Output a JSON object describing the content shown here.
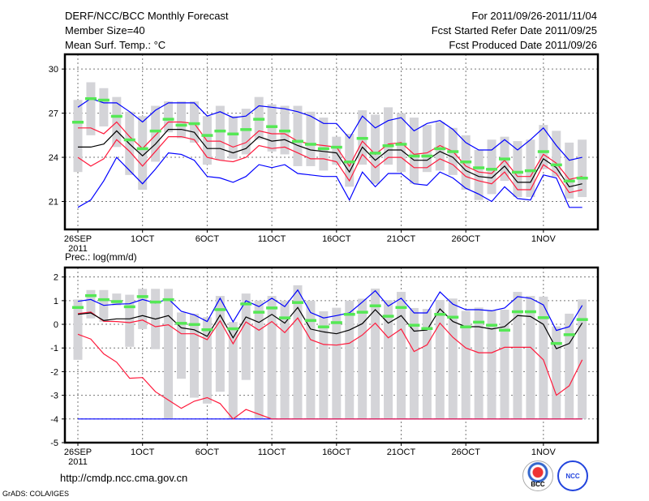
{
  "header": {
    "title": "DERF/NCC/BCC Monthly Forecast",
    "member_size": "Member Size=40",
    "variable": "Mean Surf. Temp.: °C",
    "period": "For 2011/09/26-2011/11/04",
    "start_date": "Fcst Started Refer Date 2011/09/25",
    "produced_date": "Fcst Produced Date 2011/09/26"
  },
  "footer": {
    "url": "http://cmdp.ncc.cma.gov.cn",
    "credit": "GrADS: COLA/IGES",
    "logo_bcc": "BCC",
    "logo_ncc": "NCC"
  },
  "colors": {
    "mean": "#000000",
    "red": "#ff1a3c",
    "blue": "#0000ff",
    "green": "#55e855",
    "bar": "#d4d4d8"
  },
  "chart_data": [
    {
      "type": "line",
      "title": "Mean Surf. Temp.: °C",
      "xlabel_year": "2011",
      "x_ticks": [
        {
          "day": 0,
          "label": "26SEP"
        },
        {
          "day": 5,
          "label": "1OCT"
        },
        {
          "day": 10,
          "label": "6OCT"
        },
        {
          "day": 15,
          "label": "11OCT"
        },
        {
          "day": 20,
          "label": "16OCT"
        },
        {
          "day": 25,
          "label": "21OCT"
        },
        {
          "day": 30,
          "label": "26OCT"
        },
        {
          "day": 36,
          "label": "1NOV"
        }
      ],
      "y_ticks": [
        21,
        24,
        27,
        30
      ],
      "ylim": [
        19.1,
        31.0
      ],
      "grid": true,
      "series": {
        "range_high": [
          27.9,
          29.1,
          28.7,
          28.1,
          27.1,
          26.8,
          27.5,
          27.8,
          27.8,
          27.8,
          26.8,
          27.5,
          26.8,
          27.3,
          28.1,
          27.6,
          27.5,
          27.5,
          27.1,
          26.7,
          25.4,
          25.6,
          27.2,
          26.9,
          27.4,
          27.0,
          26.7,
          26.2,
          26.4,
          26.0,
          25.5,
          24.5,
          25.2,
          25.4,
          25.1,
          25.2,
          26.2,
          25.8,
          25.0,
          25.2
        ],
        "range_low": [
          23.0,
          25.5,
          26.1,
          24.7,
          22.8,
          21.8,
          23.7,
          25.7,
          25.3,
          25.0,
          23.5,
          23.8,
          23.9,
          24.2,
          25.2,
          24.4,
          24.2,
          23.4,
          23.4,
          23.1,
          23.5,
          22.0,
          23.5,
          22.2,
          23.5,
          23.0,
          22.2,
          23.0,
          23.1,
          22.8,
          21.8,
          21.1,
          21.5,
          22.4,
          21.3,
          21.3,
          23.2,
          22.7,
          21.2,
          21.3
        ],
        "blue_upper": [
          27.4,
          28.0,
          27.7,
          27.7,
          27.1,
          26.4,
          27.2,
          27.7,
          27.7,
          27.7,
          26.8,
          27.1,
          26.7,
          26.8,
          27.5,
          27.4,
          27.3,
          27.1,
          26.8,
          26.3,
          26.3,
          25.3,
          26.8,
          26.0,
          26.5,
          26.7,
          25.8,
          26.3,
          26.5,
          25.9,
          25.0,
          24.5,
          24.5,
          25.2,
          24.5,
          25.2,
          26.0,
          24.8,
          23.8,
          24.0
        ],
        "red_upper": [
          26.0,
          26.0,
          25.6,
          26.4,
          25.4,
          24.6,
          25.5,
          26.4,
          26.4,
          26.3,
          25.1,
          25.1,
          24.7,
          25.0,
          25.8,
          25.6,
          25.6,
          25.1,
          24.9,
          24.8,
          24.7,
          23.4,
          25.1,
          24.2,
          24.9,
          25.0,
          24.2,
          24.3,
          24.8,
          24.4,
          23.4,
          23.0,
          22.9,
          23.8,
          22.7,
          22.7,
          24.2,
          23.6,
          22.5,
          22.7
        ],
        "mean": [
          24.7,
          24.7,
          24.9,
          25.8,
          24.9,
          24.1,
          24.9,
          25.9,
          25.9,
          25.7,
          24.6,
          24.6,
          24.3,
          24.6,
          25.4,
          25.1,
          25.2,
          24.8,
          24.5,
          24.4,
          24.3,
          23.0,
          24.7,
          23.8,
          24.5,
          24.5,
          23.8,
          23.8,
          24.4,
          24.0,
          23.1,
          22.7,
          22.6,
          23.4,
          22.3,
          22.3,
          23.9,
          23.3,
          22.0,
          22.2
        ],
        "red_lower": [
          24.0,
          23.4,
          23.9,
          25.2,
          24.4,
          23.4,
          24.4,
          25.4,
          25.4,
          25.2,
          24.0,
          23.8,
          23.7,
          24.0,
          24.8,
          24.6,
          24.7,
          24.3,
          23.9,
          23.9,
          23.7,
          22.4,
          24.2,
          23.3,
          24.0,
          24.0,
          23.3,
          23.3,
          23.9,
          23.5,
          22.7,
          22.4,
          22.2,
          23.0,
          21.8,
          21.8,
          23.5,
          22.9,
          21.6,
          21.8
        ],
        "blue_lower": [
          20.6,
          21.1,
          22.4,
          24.0,
          23.1,
          22.2,
          23.2,
          24.3,
          24.2,
          23.8,
          22.7,
          22.6,
          22.3,
          22.7,
          23.5,
          23.3,
          23.5,
          22.9,
          22.8,
          22.7,
          22.7,
          21.1,
          23.0,
          22.0,
          22.9,
          22.9,
          22.2,
          22.1,
          23.0,
          22.6,
          21.9,
          21.5,
          21.0,
          22.0,
          21.2,
          21.1,
          22.8,
          22.6,
          20.6,
          20.6
        ],
        "green_marker": [
          26.4,
          28.0,
          27.9,
          26.8,
          25.2,
          24.6,
          25.8,
          26.6,
          26.2,
          26.3,
          25.5,
          25.8,
          25.6,
          25.9,
          26.6,
          26.1,
          25.8,
          25.1,
          24.9,
          24.6,
          24.7,
          23.7,
          25.3,
          24.3,
          24.8,
          24.9,
          24.1,
          24.1,
          24.6,
          24.4,
          23.7,
          23.3,
          23.2,
          23.9,
          23.0,
          23.1,
          24.4,
          23.5,
          22.4,
          22.6
        ]
      }
    },
    {
      "type": "line",
      "title": "Prec.: log(mm/d)",
      "xlabel_year": "2011",
      "x_ticks": [
        {
          "day": 0,
          "label": "26SEP"
        },
        {
          "day": 5,
          "label": "1OCT"
        },
        {
          "day": 10,
          "label": "6OCT"
        },
        {
          "day": 15,
          "label": "11OCT"
        },
        {
          "day": 20,
          "label": "16OCT"
        },
        {
          "day": 25,
          "label": "21OCT"
        },
        {
          "day": 30,
          "label": "26OCT"
        },
        {
          "day": 36,
          "label": "1NOV"
        }
      ],
      "y_ticks": [
        -5,
        -4,
        -3,
        -2,
        -1,
        0,
        1,
        2
      ],
      "ylim": [
        -5,
        2.4
      ],
      "grid": true,
      "series": {
        "range_high": [
          1.05,
          1.45,
          1.45,
          1.3,
          1.25,
          1.5,
          1.5,
          1.5,
          0.5,
          0.45,
          0.3,
          1.2,
          0.1,
          1.3,
          1.0,
          1.2,
          1.0,
          1.65,
          1.0,
          0.55,
          0.7,
          1.0,
          1.08,
          1.51,
          1.02,
          1.37,
          0.69,
          0.65,
          1.03,
          1.09,
          0.57,
          0.71,
          0.6,
          0.62,
          1.37,
          1.2,
          1.17,
          -0.09,
          0.45,
          1.05
        ],
        "range_low": [
          -1.5,
          0.25,
          0.1,
          0.8,
          -0.95,
          -0.2,
          -1.05,
          -4,
          -2.3,
          -3.1,
          -3.35,
          -2.85,
          -4,
          -2.35,
          -4,
          -4,
          -4,
          -4,
          -4,
          -4,
          -4,
          -4,
          -4,
          -4,
          -4,
          -4,
          -4,
          -4,
          -4,
          -4,
          -4,
          -4,
          -4,
          -4,
          -4,
          -4,
          -4,
          -4,
          -4,
          -4
        ],
        "blue_upper": [
          0.97,
          1.05,
          0.8,
          0.85,
          0.87,
          1.05,
          0.9,
          1.07,
          0.55,
          0.4,
          0.12,
          1.1,
          0.1,
          1.0,
          0.75,
          1.1,
          0.75,
          1.45,
          0.5,
          0.27,
          0.37,
          0.48,
          0.94,
          1.42,
          0.77,
          1.1,
          0.48,
          0.48,
          1.37,
          0.85,
          0.62,
          0.62,
          0.57,
          0.69,
          1.17,
          1.1,
          0.82,
          -0.26,
          -0.1,
          0.8
        ],
        "mean": [
          0.42,
          0.48,
          0.16,
          0.23,
          0.23,
          0.37,
          0.22,
          0.37,
          -0.15,
          -0.23,
          -0.51,
          0.39,
          -0.57,
          0.31,
          0.08,
          0.42,
          0.05,
          0.71,
          -0.2,
          -0.32,
          -0.4,
          -0.24,
          0.03,
          0.62,
          0.05,
          0.37,
          -0.29,
          -0.24,
          0.65,
          0.12,
          -0.1,
          -0.1,
          -0.2,
          -0.1,
          0.37,
          0.33,
          0.0,
          -1.03,
          -0.81,
          0.06
        ],
        "red_upper": [
          0.45,
          0.52,
          0.13,
          0.12,
          0.07,
          0.18,
          -0.1,
          -0.02,
          -0.4,
          -0.4,
          -0.65,
          0.15,
          -0.82,
          0.1,
          -0.25,
          0.12,
          -0.35,
          0.27,
          -0.65,
          -0.85,
          -0.88,
          -0.8,
          -0.45,
          0.05,
          -0.57,
          -0.2,
          -1.15,
          -0.87,
          0.05,
          -0.55,
          -1.0,
          -1.2,
          -1.2,
          -0.97,
          -0.97,
          -0.97,
          -1.5,
          -3.0,
          -2.6,
          -1.5
        ],
        "red_lower": [
          -0.42,
          -0.62,
          -1.25,
          -1.6,
          -2.28,
          -2.25,
          -2.85,
          -3.2,
          -3.55,
          -3.25,
          -3.1,
          -3.35,
          -4,
          -3.6,
          -3.8,
          -4,
          -4,
          -4,
          -4,
          -4,
          -4,
          -4,
          -4,
          -4,
          -4,
          -4,
          -4,
          -4,
          -4,
          -4,
          -4,
          -4,
          -4,
          -4,
          -4,
          -4,
          -4,
          -4,
          -4,
          -4
        ],
        "blue_lower": [
          -4,
          -4,
          -4,
          -4,
          -4,
          -4,
          -4,
          -4,
          -4,
          -4,
          -4,
          -4,
          -4,
          -4,
          -4,
          -4,
          -4,
          -4,
          -4,
          -4,
          -4,
          -4,
          -4,
          -4,
          -4,
          -4,
          -4,
          -4,
          -4,
          -4,
          -4,
          -4,
          -4,
          -4,
          -4,
          -4,
          -4,
          -4,
          -4,
          -4
        ],
        "green_marker": [
          0.72,
          1.22,
          1.05,
          0.97,
          0.75,
          1.18,
          0.95,
          1.05,
          0.05,
          0.0,
          -0.22,
          0.63,
          -0.18,
          0.87,
          0.52,
          0.7,
          0.28,
          0.93,
          0.17,
          -0.1,
          0.08,
          0.43,
          0.52,
          0.79,
          0.35,
          0.72,
          -0.03,
          -0.17,
          0.43,
          0.31,
          -0.1,
          0.1,
          -0.03,
          -0.24,
          0.54,
          0.54,
          0.29,
          -0.8,
          -0.43,
          0.21
        ]
      }
    }
  ]
}
